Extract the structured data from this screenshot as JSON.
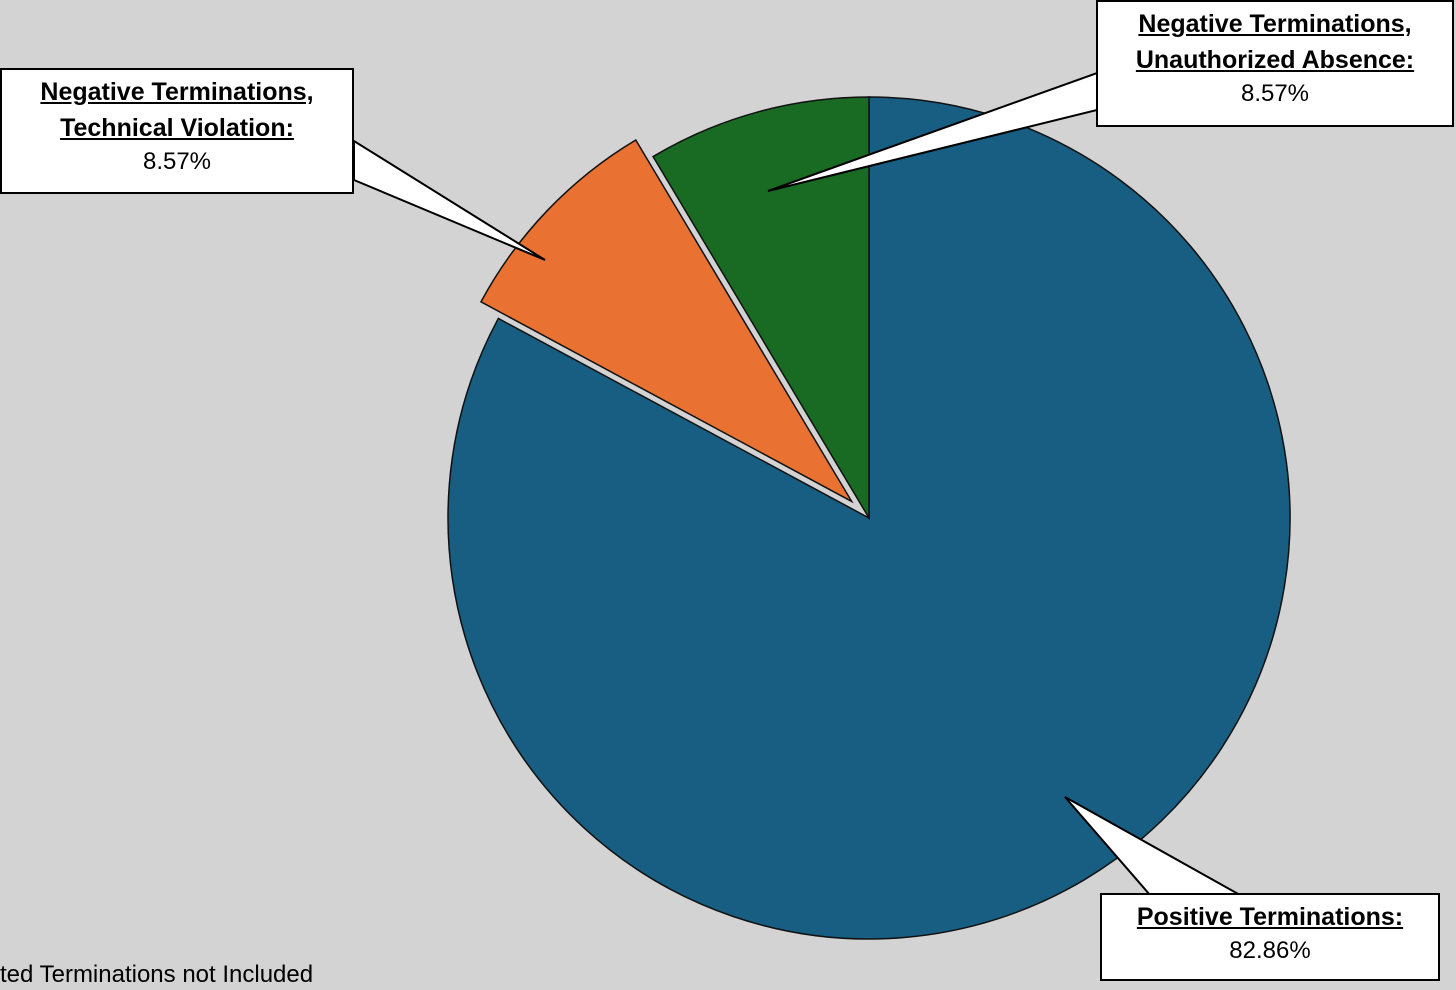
{
  "chart_data": {
    "type": "pie",
    "slices": [
      {
        "label": "Positive Terminations:",
        "value": 82.86,
        "value_label": "82.86%",
        "color": "#175e82"
      },
      {
        "label": "Negative Terminations,\nTechnical Violation:",
        "value": 8.57,
        "value_label": "8.57%",
        "color": "#e97132"
      },
      {
        "label": "Negative Terminations,\nUnauthorized Absence:",
        "value": 8.57,
        "value_label": "8.57%",
        "color": "#196b24"
      }
    ],
    "exploded": [
      false,
      true,
      false
    ],
    "start_angle_deg": 0,
    "direction": "clockwise",
    "background": "#d3d3d3",
    "footnote": "ted Terminations not Included"
  }
}
